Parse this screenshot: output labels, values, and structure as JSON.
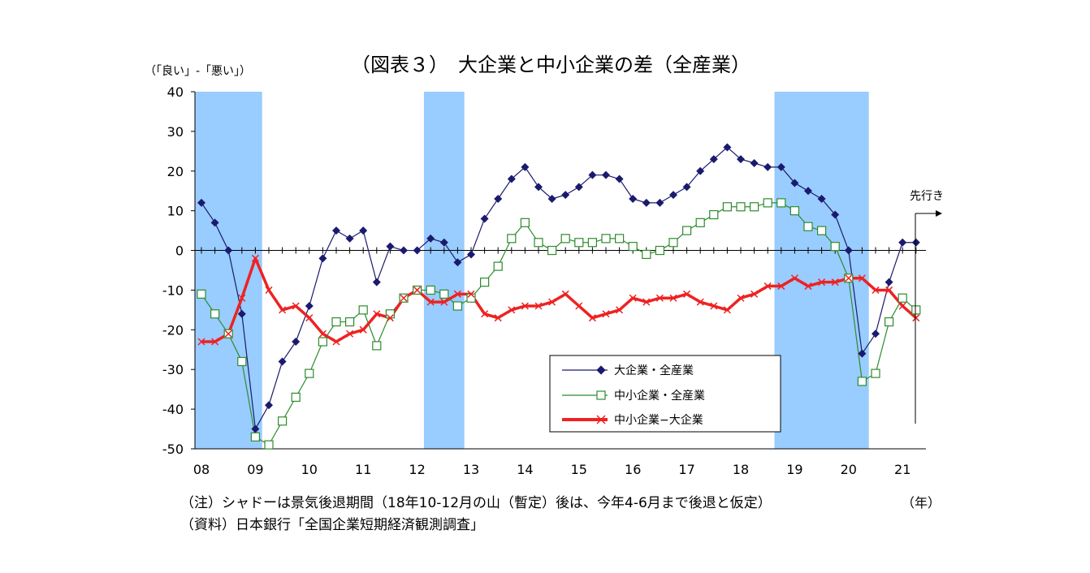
{
  "chart_data": {
    "type": "line",
    "title": "（図表３）　大企業と中小企業の差（全産業）",
    "ylabel": "（「良い」-「悪い」）",
    "xlabel": "（年）",
    "ylim": [
      -50,
      40
    ],
    "yticks": [
      40,
      30,
      20,
      10,
      0,
      -10,
      -20,
      -30,
      -40,
      -50
    ],
    "x_year_labels": [
      "08",
      "09",
      "10",
      "11",
      "12",
      "13",
      "14",
      "15",
      "16",
      "17",
      "18",
      "19",
      "20",
      "21"
    ],
    "x_quarters": [
      "2008Q1",
      "2008Q2",
      "2008Q3",
      "2008Q4",
      "2009Q1",
      "2009Q2",
      "2009Q3",
      "2009Q4",
      "2010Q1",
      "2010Q2",
      "2010Q3",
      "2010Q4",
      "2011Q1",
      "2011Q2",
      "2011Q3",
      "2011Q4",
      "2012Q1",
      "2012Q2",
      "2012Q3",
      "2012Q4",
      "2013Q1",
      "2013Q2",
      "2013Q3",
      "2013Q4",
      "2014Q1",
      "2014Q2",
      "2014Q3",
      "2014Q4",
      "2015Q1",
      "2015Q2",
      "2015Q3",
      "2015Q4",
      "2016Q1",
      "2016Q2",
      "2016Q3",
      "2016Q4",
      "2017Q1",
      "2017Q2",
      "2017Q3",
      "2017Q4",
      "2018Q1",
      "2018Q2",
      "2018Q3",
      "2018Q4",
      "2019Q1",
      "2019Q2",
      "2019Q3",
      "2019Q4",
      "2020Q1",
      "2020Q2",
      "2020Q3",
      "2020Q4",
      "2021Q1",
      "2021Q2"
    ],
    "forecast_label": "先行き",
    "recession_periods": [
      [
        "2008Q1",
        "2009Q1"
      ],
      [
        "2012Q2",
        "2012Q4"
      ],
      [
        "2018Q4",
        "2020Q2"
      ]
    ],
    "series": [
      {
        "name": "大企業・全産業",
        "color": "#1a1a6e",
        "marker": "diamond",
        "values": [
          12,
          7,
          0,
          -16,
          -45,
          -39,
          -28,
          -23,
          -14,
          -2,
          5,
          3,
          5,
          -8,
          1,
          0,
          0,
          3,
          2,
          -3,
          -1,
          8,
          13,
          18,
          21,
          16,
          13,
          14,
          16,
          19,
          19,
          18,
          13,
          12,
          12,
          14,
          16,
          20,
          23,
          26,
          23,
          22,
          21,
          21,
          17,
          15,
          13,
          9,
          0,
          -26,
          -21,
          -8,
          2,
          2
        ]
      },
      {
        "name": "中小企業・全産業",
        "color": "#2e8b2e",
        "marker": "square",
        "values": [
          -11,
          -16,
          -21,
          -28,
          -47,
          -49,
          -43,
          -37,
          -31,
          -23,
          -18,
          -18,
          -15,
          -24,
          -16,
          -12,
          -10,
          -10,
          -11,
          -14,
          -12,
          -8,
          -4,
          3,
          7,
          2,
          0,
          3,
          2,
          2,
          3,
          3,
          1,
          -1,
          0,
          2,
          5,
          7,
          9,
          11,
          11,
          11,
          12,
          12,
          10,
          6,
          5,
          1,
          -7,
          -33,
          -31,
          -18,
          -12,
          -15
        ]
      },
      {
        "name": "中小企業−大企業",
        "color": "#ee2222",
        "marker": "x",
        "values": [
          -23,
          -23,
          -21,
          -12,
          -2,
          -10,
          -15,
          -14,
          -17,
          -21,
          -23,
          -21,
          -20,
          -16,
          -17,
          -12,
          -10,
          -13,
          -13,
          -11,
          -11,
          -16,
          -17,
          -15,
          -14,
          -14,
          -13,
          -11,
          -14,
          -17,
          -16,
          -15,
          -12,
          -13,
          -12,
          -12,
          -11,
          -13,
          -14,
          -15,
          -12,
          -11,
          -9,
          -9,
          -7,
          -9,
          -8,
          -8,
          -7,
          -7,
          -10,
          -10,
          -14,
          -17
        ]
      }
    ]
  },
  "notes": {
    "line1": "（注）シャドーは景気後退期間（18年10-12月の山（暫定）後は、今年4-6月まで後退と仮定）",
    "line2": "（資料）日本銀行「全国企業短期経済観測調査」"
  }
}
